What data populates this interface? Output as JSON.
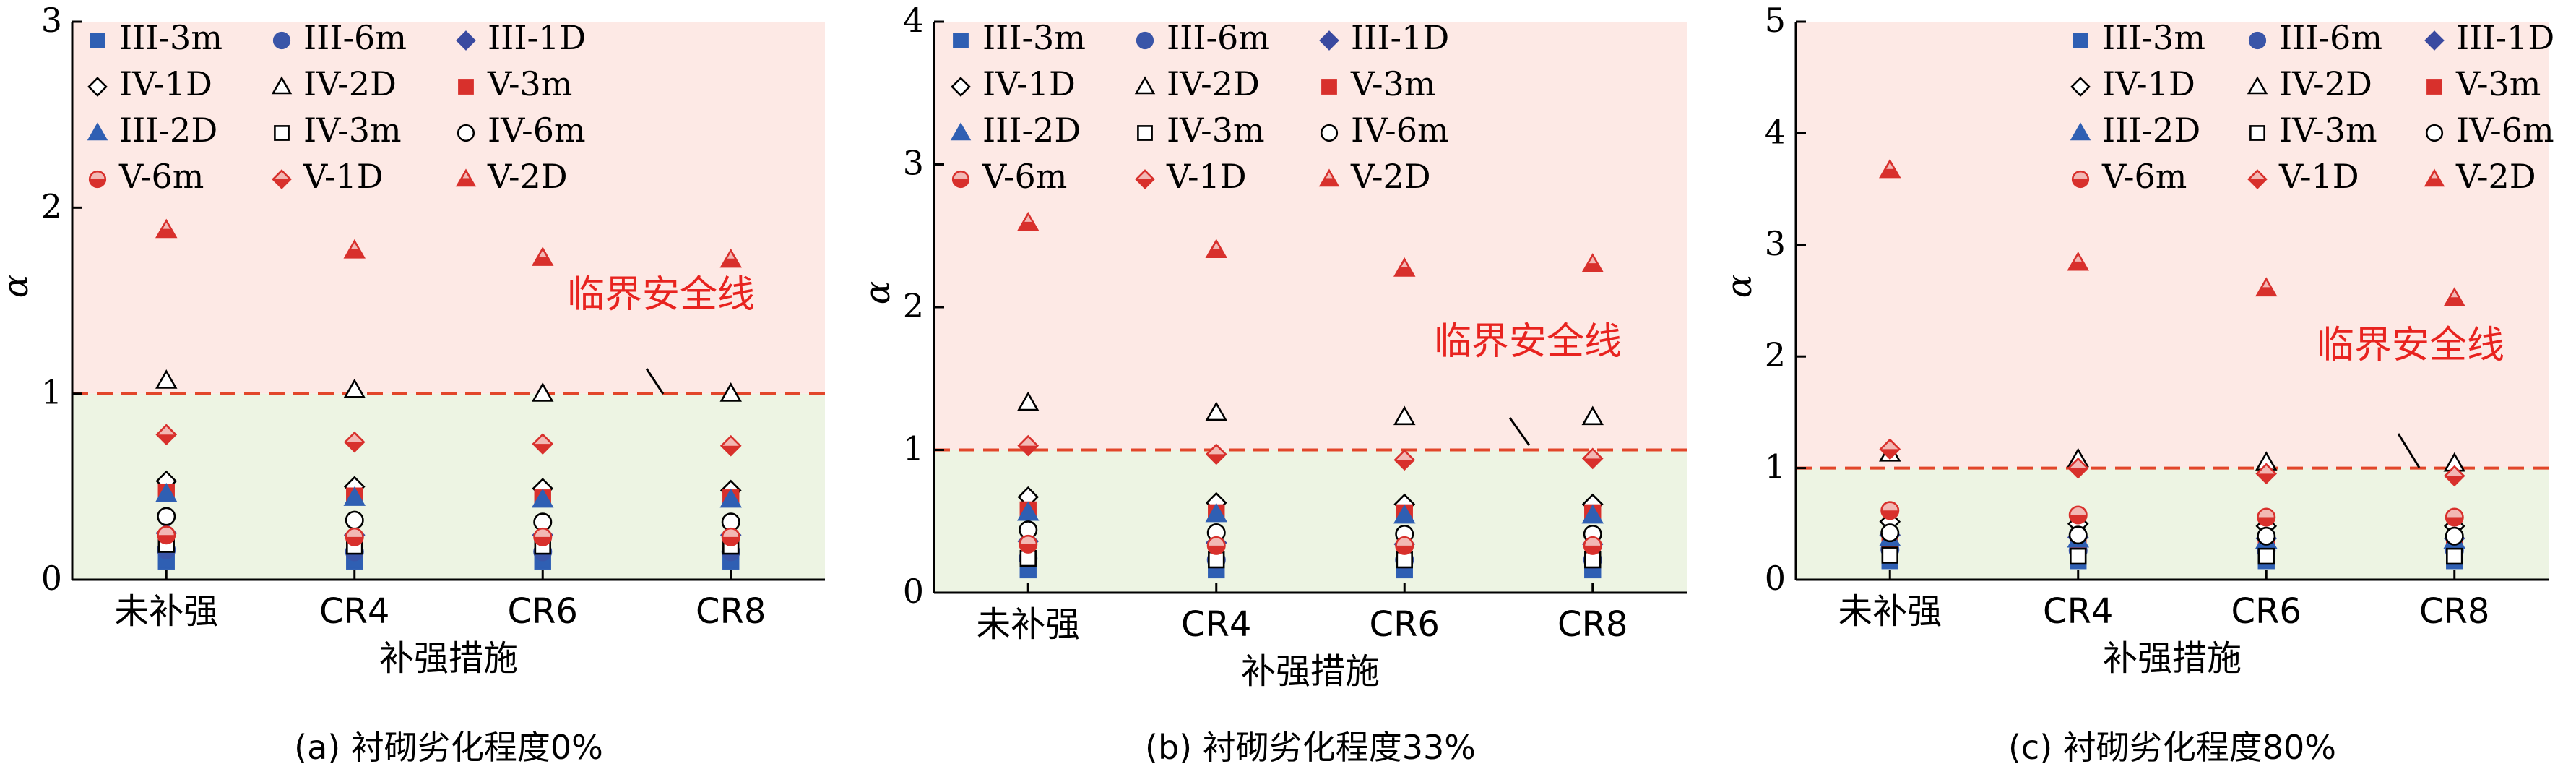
{
  "legend_labels": [
    "III-3m",
    "III-6m",
    "III-1D",
    "IV-1D",
    "IV-2D",
    "V-3m",
    "III-2D",
    "IV-3m",
    "IV-6m",
    "V-6m",
    "V-1D",
    "V-2D"
  ],
  "series_styles": [
    {
      "name": "III-3m",
      "shape": "square",
      "fill": "#2f5fb3",
      "stroke": "#2f5fb3"
    },
    {
      "name": "III-6m",
      "shape": "circle",
      "fill": "#3a55a8",
      "stroke": "#3a55a8"
    },
    {
      "name": "III-1D",
      "shape": "diamond",
      "fill": "#3a4aa0",
      "stroke": "#3a4aa0"
    },
    {
      "name": "IV-1D",
      "shape": "diamond",
      "fill": "none",
      "stroke": "#000000"
    },
    {
      "name": "IV-2D",
      "shape": "triangle",
      "fill": "none",
      "stroke": "#000000"
    },
    {
      "name": "V-3m",
      "shape": "square",
      "fill": "#d8302c",
      "stroke": "#d8302c"
    },
    {
      "name": "III-2D",
      "shape": "triangle",
      "fill": "#2f5fb3",
      "stroke": "#2f5fb3"
    },
    {
      "name": "IV-3m",
      "shape": "square",
      "fill": "none",
      "stroke": "#000000"
    },
    {
      "name": "IV-6m",
      "shape": "circle",
      "fill": "none",
      "stroke": "#000000"
    },
    {
      "name": "V-6m",
      "shape": "circle-half",
      "fill": "#d8302c",
      "stroke": "#d8302c"
    },
    {
      "name": "V-1D",
      "shape": "diamond-half",
      "fill": "#d8302c",
      "stroke": "#d8302c"
    },
    {
      "name": "V-2D",
      "shape": "triangle-half",
      "fill": "#d8302c",
      "stroke": "#d8302c"
    }
  ],
  "colors": {
    "unsafe_zone": "#fde9e5",
    "safe_zone": "#edf4e3",
    "critical_line": "#e2462a",
    "annotation_text": "#e8231f"
  },
  "chart_data": [
    {
      "type": "scatter",
      "caption": "(a) 衬砌劣化程度0%",
      "xlabel": "补强措施",
      "ylabel": "α",
      "categories": [
        "未补强",
        "CR4",
        "CR6",
        "CR8"
      ],
      "ylim": [
        0,
        3
      ],
      "yticks": [
        "0",
        "1",
        "2",
        "3"
      ],
      "critical_line": {
        "y": 1,
        "label": "临界安全线"
      },
      "series": [
        {
          "name": "III-3m",
          "values": [
            0.1,
            0.1,
            0.1,
            0.1
          ]
        },
        {
          "name": "III-6m",
          "values": [
            0.16,
            0.15,
            0.15,
            0.15
          ]
        },
        {
          "name": "III-1D",
          "values": [
            0.25,
            0.24,
            0.24,
            0.24
          ]
        },
        {
          "name": "IV-1D",
          "values": [
            0.53,
            0.5,
            0.49,
            0.48
          ]
        },
        {
          "name": "IV-2D",
          "values": [
            1.07,
            1.02,
            1.0,
            1.0
          ]
        },
        {
          "name": "V-3m",
          "values": [
            0.47,
            0.45,
            0.44,
            0.44
          ]
        },
        {
          "name": "III-2D",
          "values": [
            0.46,
            0.44,
            0.43,
            0.43
          ]
        },
        {
          "name": "IV-3m",
          "values": [
            0.19,
            0.18,
            0.18,
            0.18
          ]
        },
        {
          "name": "IV-6m",
          "values": [
            0.34,
            0.32,
            0.31,
            0.31
          ]
        },
        {
          "name": "V-6m",
          "values": [
            0.24,
            0.23,
            0.23,
            0.23
          ]
        },
        {
          "name": "V-1D",
          "values": [
            0.78,
            0.74,
            0.73,
            0.72
          ]
        },
        {
          "name": "V-2D",
          "values": [
            1.88,
            1.77,
            1.73,
            1.72
          ]
        }
      ]
    },
    {
      "type": "scatter",
      "caption": "(b) 衬砌劣化程度33%",
      "xlabel": "补强措施",
      "ylabel": "α",
      "categories": [
        "未补强",
        "CR4",
        "CR6",
        "CR8"
      ],
      "ylim": [
        0,
        4
      ],
      "yticks": [
        "0",
        "1",
        "2",
        "3",
        "4"
      ],
      "critical_line": {
        "y": 1,
        "label": "临界安全线"
      },
      "series": [
        {
          "name": "III-3m",
          "values": [
            0.16,
            0.16,
            0.16,
            0.16
          ]
        },
        {
          "name": "III-6m",
          "values": [
            0.24,
            0.23,
            0.23,
            0.23
          ]
        },
        {
          "name": "III-1D",
          "values": [
            0.36,
            0.35,
            0.34,
            0.34
          ]
        },
        {
          "name": "IV-1D",
          "values": [
            0.67,
            0.63,
            0.62,
            0.62
          ]
        },
        {
          "name": "IV-2D",
          "values": [
            1.33,
            1.26,
            1.23,
            1.23
          ]
        },
        {
          "name": "V-3m",
          "values": [
            0.58,
            0.56,
            0.56,
            0.56
          ]
        },
        {
          "name": "III-2D",
          "values": [
            0.56,
            0.55,
            0.54,
            0.54
          ]
        },
        {
          "name": "IV-3m",
          "values": [
            0.24,
            0.23,
            0.23,
            0.23
          ]
        },
        {
          "name": "IV-6m",
          "values": [
            0.44,
            0.42,
            0.41,
            0.41
          ]
        },
        {
          "name": "V-6m",
          "values": [
            0.34,
            0.33,
            0.33,
            0.33
          ]
        },
        {
          "name": "V-1D",
          "values": [
            1.03,
            0.97,
            0.93,
            0.94
          ]
        },
        {
          "name": "V-2D",
          "values": [
            2.59,
            2.4,
            2.27,
            2.3
          ]
        }
      ]
    },
    {
      "type": "scatter",
      "caption": "(c) 衬砌劣化程度80%",
      "xlabel": "补强措施",
      "ylabel": "α",
      "categories": [
        "未补强",
        "CR4",
        "CR6",
        "CR8"
      ],
      "ylim": [
        0,
        5
      ],
      "yticks": [
        "0",
        "1",
        "2",
        "3",
        "4",
        "5"
      ],
      "critical_line": {
        "y": 1,
        "label": "临界安全线"
      },
      "series": [
        {
          "name": "III-3m",
          "values": [
            0.17,
            0.17,
            0.17,
            0.17
          ]
        },
        {
          "name": "III-6m",
          "values": [
            0.27,
            0.26,
            0.26,
            0.26
          ]
        },
        {
          "name": "III-1D",
          "values": [
            0.4,
            0.38,
            0.37,
            0.37
          ]
        },
        {
          "name": "IV-1D",
          "values": [
            0.52,
            0.5,
            0.48,
            0.48
          ]
        },
        {
          "name": "IV-2D",
          "values": [
            1.13,
            1.08,
            1.05,
            1.04
          ]
        },
        {
          "name": "V-3m",
          "values": [
            0.35,
            0.33,
            0.33,
            0.33
          ]
        },
        {
          "name": "III-2D",
          "values": [
            0.37,
            0.36,
            0.35,
            0.35
          ]
        },
        {
          "name": "IV-3m",
          "values": [
            0.22,
            0.21,
            0.21,
            0.21
          ]
        },
        {
          "name": "IV-6m",
          "values": [
            0.42,
            0.4,
            0.39,
            0.39
          ]
        },
        {
          "name": "V-6m",
          "values": [
            0.62,
            0.58,
            0.56,
            0.56
          ]
        },
        {
          "name": "V-1D",
          "values": [
            1.17,
            1.0,
            0.95,
            0.93
          ]
        },
        {
          "name": "V-2D",
          "values": [
            3.67,
            2.84,
            2.61,
            2.52
          ]
        }
      ]
    }
  ]
}
